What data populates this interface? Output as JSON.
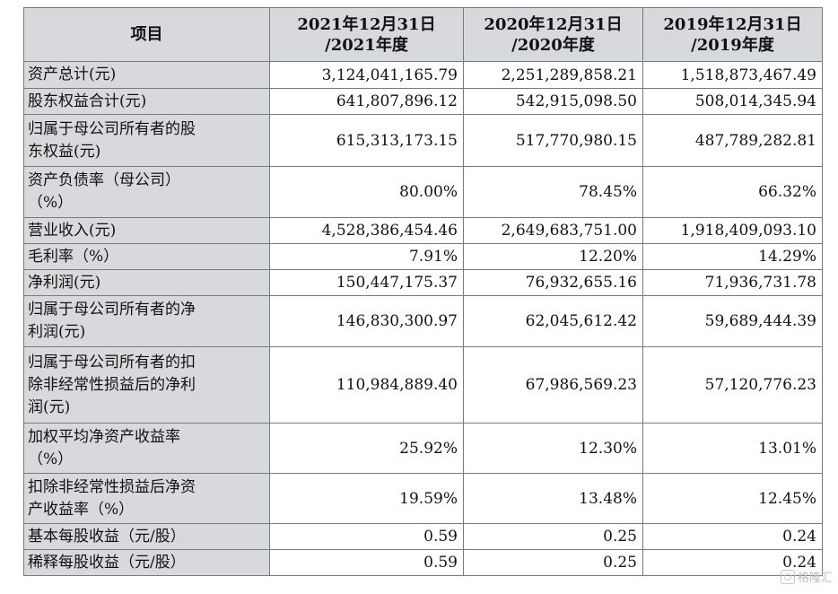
{
  "chart_data": {
    "type": "table",
    "columns": [
      "项目",
      "2021年12月31日/2021年度",
      "2020年12月31日/2020年度",
      "2019年12月31日/2019年度"
    ],
    "header_lines": [
      [
        "项目"
      ],
      [
        "2021年12月31日",
        "/2021年度"
      ],
      [
        "2020年12月31日",
        "/2020年度"
      ],
      [
        "2019年12月31日",
        "/2019年度"
      ]
    ],
    "rows": [
      {
        "label": "资产总计(元)",
        "values": [
          "3,124,041,165.79",
          "2,251,289,858.21",
          "1,518,873,467.49"
        ]
      },
      {
        "label": "股东权益合计(元)",
        "values": [
          "641,807,896.12",
          "542,915,098.50",
          "508,014,345.94"
        ]
      },
      {
        "label": "归属于母公司所有者的股东权益(元)",
        "values": [
          "615,313,173.15",
          "517,770,980.15",
          "487,789,282.81"
        ]
      },
      {
        "label": "资产负债率（母公司）（%）",
        "values": [
          "80.00%",
          "78.45%",
          "66.32%"
        ]
      },
      {
        "label": "营业收入(元)",
        "values": [
          "4,528,386,454.46",
          "2,649,683,751.00",
          "1,918,409,093.10"
        ]
      },
      {
        "label": "毛利率（%）",
        "values": [
          "7.91%",
          "12.20%",
          "14.29%"
        ]
      },
      {
        "label": "净利润(元)",
        "values": [
          "150,447,175.37",
          "76,932,655.16",
          "71,936,731.78"
        ]
      },
      {
        "label": "归属于母公司所有者的净利润(元)",
        "values": [
          "146,830,300.97",
          "62,045,612.42",
          "59,689,444.39"
        ]
      },
      {
        "label": "归属于母公司所有者的扣除非经常性损益后的净利润(元)",
        "values": [
          "110,984,889.40",
          "67,986,569.23",
          "57,120,776.23"
        ]
      },
      {
        "label": "加权平均净资产收益率（%）",
        "values": [
          "25.92%",
          "12.30%",
          "13.01%"
        ]
      },
      {
        "label": "扣除非经常性损益后净资产收益率（%）",
        "values": [
          "19.59%",
          "13.48%",
          "12.45%"
        ]
      },
      {
        "label": "基本每股收益（元/股）",
        "values": [
          "0.59",
          "0.25",
          "0.24"
        ]
      },
      {
        "label": "稀释每股收益（元/股）",
        "values": [
          "0.59",
          "0.25",
          "0.24"
        ]
      }
    ],
    "label_lines": [
      [
        "资产总计(元)"
      ],
      [
        "股东权益合计(元)"
      ],
      [
        "归属于母公司所有者的股",
        "东权益(元)"
      ],
      [
        "资产负债率（母公司）",
        "（%）"
      ],
      [
        "营业收入(元)"
      ],
      [
        "毛利率（%）"
      ],
      [
        "净利润(元)"
      ],
      [
        "归属于母公司所有者的净",
        "利润(元)"
      ],
      [
        "归属于母公司所有者的扣",
        "除非经常性损益后的净利",
        "润(元)"
      ],
      [
        "加权平均净资产收益率",
        "（%）"
      ],
      [
        "扣除非经常性损益后净资",
        "产收益率（%）"
      ],
      [
        "基本每股收益（元/股）"
      ],
      [
        "稀释每股收益（元/股）"
      ]
    ]
  },
  "watermark": {
    "text": "格隆汇",
    "icon": "gelonghui-logo-icon"
  },
  "colors": {
    "header_bg": "#d7d9dc",
    "border": "#7a7a7a",
    "cell_bg": "#ffffff"
  }
}
